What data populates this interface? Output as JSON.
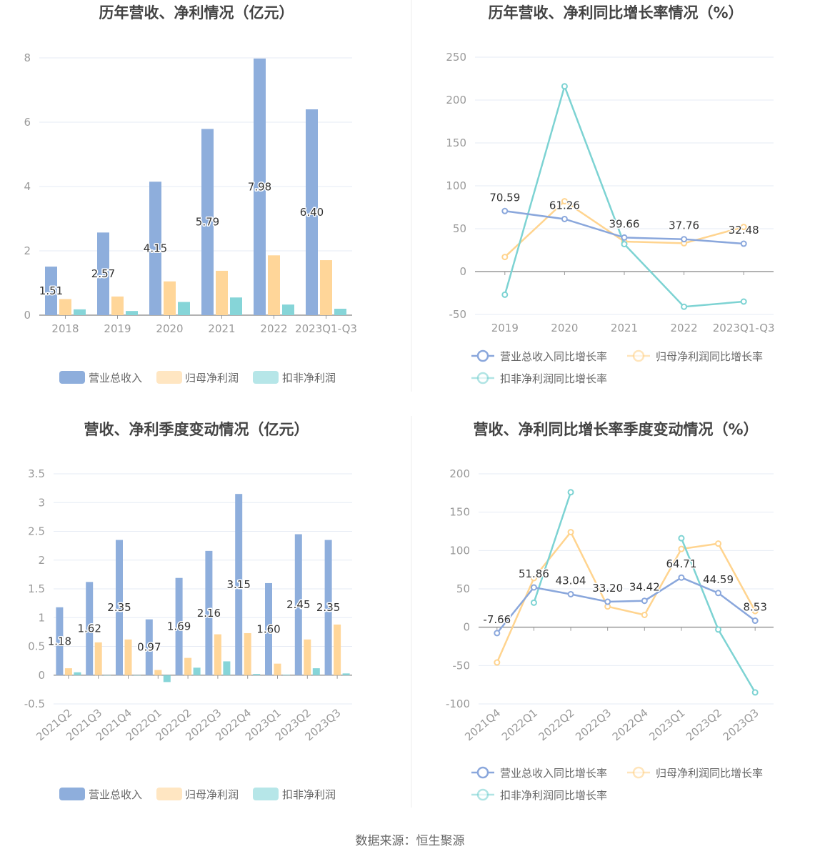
{
  "source_note": "数据来源：恒生聚源",
  "colors": {
    "revenue": "#8eaedc",
    "net_profit": "#ffd699",
    "deducted": "#86d5d8"
  },
  "chart_data": [
    {
      "type": "bar",
      "title": "历年营收、净利情况（亿元）",
      "categories": [
        "2018",
        "2019",
        "2020",
        "2021",
        "2022",
        "2023Q1-Q3"
      ],
      "ylim": [
        0,
        8
      ],
      "yticks": [
        "0",
        "2",
        "4",
        "6",
        "8"
      ],
      "legend": "bottom",
      "series": [
        {
          "name": "营业总收入",
          "values": [
            1.51,
            2.57,
            4.15,
            5.79,
            7.98,
            6.4
          ],
          "labels": [
            "1.51",
            "2.57",
            "4.15",
            "5.79",
            "7.98",
            "6.40"
          ]
        },
        {
          "name": "归母净利润",
          "values": [
            0.5,
            0.58,
            1.05,
            1.38,
            1.86,
            1.71
          ]
        },
        {
          "name": "扣非净利润",
          "values": [
            0.18,
            0.13,
            0.41,
            0.55,
            0.33,
            0.2
          ]
        }
      ]
    },
    {
      "type": "line",
      "title": "历年营收、净利同比增长率情况（%）",
      "categories": [
        "2019",
        "2020",
        "2021",
        "2022",
        "2023Q1-Q3"
      ],
      "ylim": [
        -50,
        250
      ],
      "yticks": [
        "-50",
        "0",
        "50",
        "100",
        "150",
        "200",
        "250"
      ],
      "legend": "bottom",
      "series": [
        {
          "name": "营业总收入同比增长率",
          "values": [
            70.59,
            61.26,
            39.66,
            37.76,
            32.48
          ],
          "labels": [
            "70.59",
            "61.26",
            "39.66",
            "37.76",
            "32.48"
          ]
        },
        {
          "name": "归母净利润同比增长率",
          "values": [
            17,
            82,
            35,
            33,
            52
          ]
        },
        {
          "name": "扣非净利润同比增长率",
          "values": [
            -27,
            216,
            32,
            -41,
            -35
          ]
        }
      ]
    },
    {
      "type": "bar",
      "title": "营收、净利季度变动情况（亿元）",
      "categories": [
        "2021Q2",
        "2021Q3",
        "2021Q4",
        "2022Q1",
        "2022Q2",
        "2022Q3",
        "2022Q4",
        "2023Q1",
        "2023Q2",
        "2023Q3"
      ],
      "ylim": [
        -0.5,
        3.5
      ],
      "yticks": [
        "-0.5",
        "0",
        "0.5",
        "1",
        "1.5",
        "2",
        "2.5",
        "3",
        "3.5"
      ],
      "legend": "bottom",
      "series": [
        {
          "name": "营业总收入",
          "values": [
            1.18,
            1.62,
            2.35,
            0.97,
            1.69,
            2.16,
            3.15,
            1.6,
            2.45,
            2.35
          ],
          "labels": [
            "1.18",
            "1.62",
            "2.35",
            "0.97",
            "1.69",
            "2.16",
            "3.15",
            "1.60",
            "2.45",
            "2.35"
          ]
        },
        {
          "name": "归母净利润",
          "values": [
            0.12,
            0.57,
            0.62,
            0.09,
            0.3,
            0.71,
            0.73,
            0.2,
            0.62,
            0.88
          ]
        },
        {
          "name": "扣非净利润",
          "values": [
            0.05,
            0.0,
            0.0,
            -0.12,
            0.13,
            0.24,
            0.02,
            0.01,
            0.12,
            0.03
          ]
        }
      ]
    },
    {
      "type": "line",
      "title": "营收、净利同比增长率季度变动情况（%）",
      "categories": [
        "2021Q4",
        "2022Q1",
        "2022Q2",
        "2022Q3",
        "2022Q4",
        "2023Q1",
        "2023Q2",
        "2023Q3"
      ],
      "ylim": [
        -100,
        200
      ],
      "yticks": [
        "-100",
        "-50",
        "0",
        "50",
        "100",
        "150",
        "200"
      ],
      "legend": "bottom",
      "series": [
        {
          "name": "营业总收入同比增长率",
          "values": [
            -7.66,
            51.86,
            43.04,
            33.2,
            34.42,
            64.71,
            44.59,
            8.53
          ],
          "labels": [
            "-7.66",
            "51.86",
            "43.04",
            "33.20",
            "34.42",
            "64.71",
            "44.59",
            "8.53"
          ]
        },
        {
          "name": "归母净利润同比增长率",
          "values": [
            -46,
            64,
            124,
            27,
            16,
            102,
            109,
            21
          ]
        },
        {
          "name": "扣非净利润同比增长率",
          "values": [
            null,
            32,
            176,
            null,
            null,
            116,
            -3,
            -85
          ]
        }
      ]
    }
  ]
}
